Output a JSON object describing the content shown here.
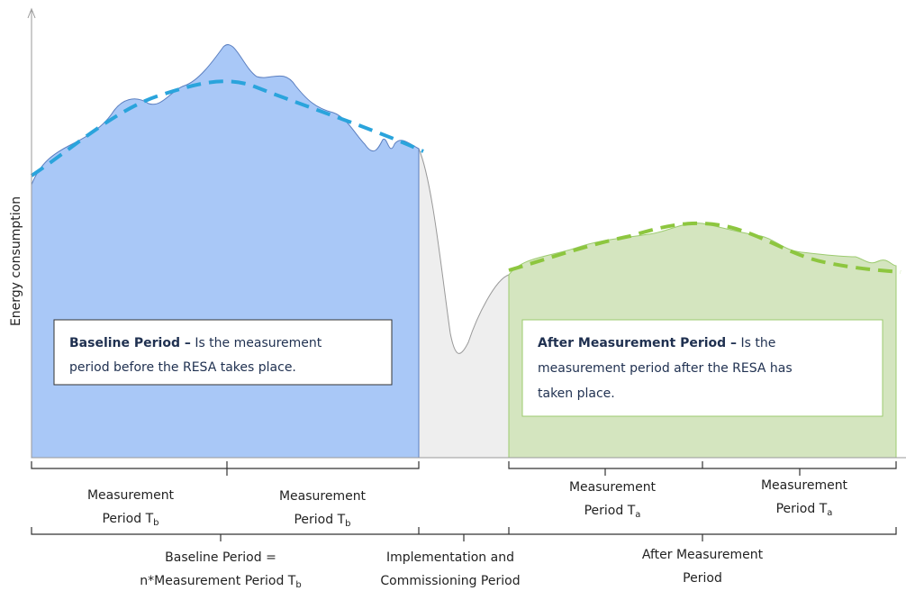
{
  "y_axis_label": "Energy consumption",
  "boxes": [
    {
      "title": "Baseline Period –",
      "lines": [
        "Is the measurement",
        "period before the RESA takes place."
      ]
    },
    {
      "title": "After Measurement Period –",
      "lines": [
        "Is the",
        "measurement period after the RESA has",
        "taken place."
      ]
    }
  ],
  "periods": [
    {
      "lines": [
        "Measurement",
        "Period T"
      ],
      "sub": "b"
    },
    {
      "lines": [
        "Measurement",
        "Period T"
      ],
      "sub": "b"
    },
    {
      "lines": [
        "Measurement",
        "Period T"
      ],
      "sub": "a"
    },
    {
      "lines": [
        "Measurement",
        "Period T"
      ],
      "sub": "a"
    },
    {
      "lines": [
        "Baseline Period =",
        "n*Measurement Period T"
      ],
      "sub": "b"
    },
    {
      "lines": [
        "Implementation and",
        "Commissioning Period"
      ]
    },
    {
      "lines": [
        "After Measurement",
        "Period"
      ]
    }
  ]
}
